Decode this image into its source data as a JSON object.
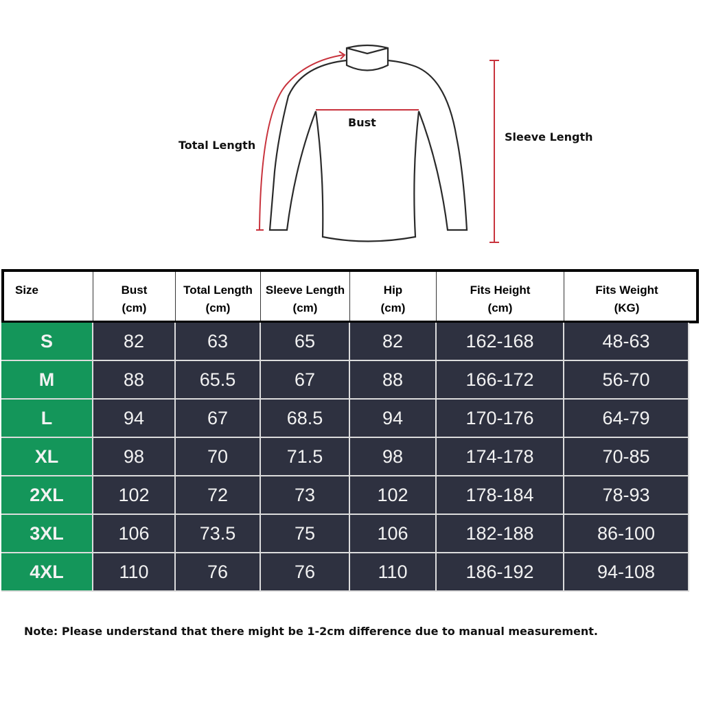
{
  "diagram": {
    "total_length_label": "Total Length",
    "bust_label": "Bust",
    "sleeve_length_label": "Sleeve Length",
    "accent_color": "#c8323c"
  },
  "table": {
    "headers": [
      {
        "name": "Size",
        "unit": ""
      },
      {
        "name": "Bust",
        "unit": "(cm)"
      },
      {
        "name": "Total Length",
        "unit": "(cm)"
      },
      {
        "name": "Sleeve Length",
        "unit": "(cm)"
      },
      {
        "name": "Hip",
        "unit": "(cm)"
      },
      {
        "name": "Fits Height",
        "unit": "(cm)"
      },
      {
        "name": "Fits Weight",
        "unit": "(KG)"
      }
    ],
    "rows": [
      [
        "S",
        "82",
        "63",
        "65",
        "82",
        "162-168",
        "48-63"
      ],
      [
        "M",
        "88",
        "65.5",
        "67",
        "88",
        "166-172",
        "56-70"
      ],
      [
        "L",
        "94",
        "67",
        "68.5",
        "94",
        "170-176",
        "64-79"
      ],
      [
        "XL",
        "98",
        "70",
        "71.5",
        "98",
        "174-178",
        "70-85"
      ],
      [
        "2XL",
        "102",
        "72",
        "73",
        "102",
        "178-184",
        "78-93"
      ],
      [
        "3XL",
        "106",
        "73.5",
        "75",
        "106",
        "182-188",
        "86-100"
      ],
      [
        "4XL",
        "110",
        "76",
        "76",
        "110",
        "186-192",
        "94-108"
      ]
    ],
    "size_color": "#14965a",
    "cell_color": "#2e3140"
  },
  "note": "Note: Please understand that there might be 1-2cm difference due to manual measurement."
}
